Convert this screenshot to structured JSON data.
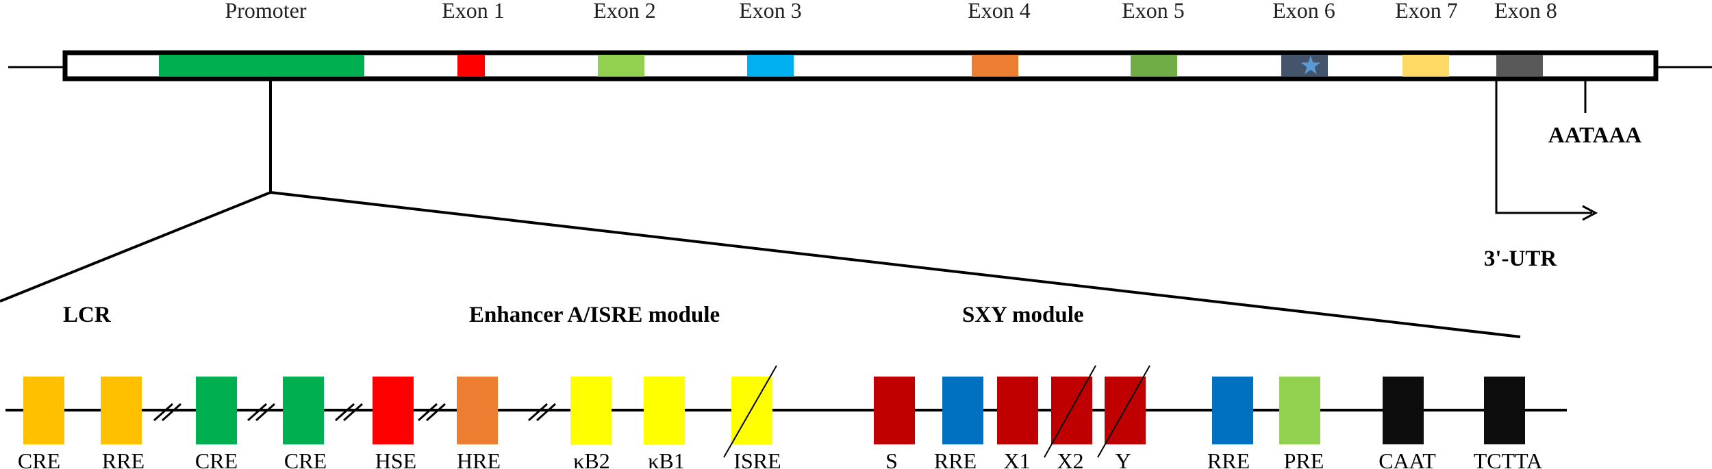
{
  "gene": {
    "promoter": {
      "label": "Promoter",
      "color": "#00b050"
    },
    "exons": [
      {
        "label": "Exon 1",
        "color": "#ff0000"
      },
      {
        "label": "Exon 2",
        "color": "#92d050"
      },
      {
        "label": "Exon 3",
        "color": "#00b0f0"
      },
      {
        "label": "Exon 4",
        "color": "#ed7d31"
      },
      {
        "label": "Exon 5",
        "color": "#70ad47"
      },
      {
        "label": "Exon 6",
        "color": "#44546a",
        "marker": "star-icon",
        "marker_color": "#5b9bd5"
      },
      {
        "label": "Exon 7",
        "color": "#ffd966"
      },
      {
        "label": "Exon 8",
        "color": "#595959"
      }
    ],
    "polyA_signal": "AATAAA",
    "utr_label": "3'-UTR"
  },
  "modules": {
    "lcr": "LCR",
    "enhancer": "Enhancer A/ISRE module",
    "sxy": "SXY module"
  },
  "elements": [
    {
      "label": "CRE",
      "color": "#ffc000"
    },
    {
      "label": "RRE",
      "color": "#ffc000"
    },
    {
      "label": "CRE",
      "color": "#00b050"
    },
    {
      "label": "CRE",
      "color": "#00b050"
    },
    {
      "label": "HSE",
      "color": "#ff0000"
    },
    {
      "label": "HRE",
      "color": "#ed7d31"
    },
    {
      "label": "κB2",
      "color": "#ffff00"
    },
    {
      "label": "κB1",
      "color": "#ffff00"
    },
    {
      "label": "ISRE",
      "color": "#ffff00",
      "crossed": true
    },
    {
      "label": "S",
      "color": "#c00000"
    },
    {
      "label": "RRE",
      "color": "#0070c0"
    },
    {
      "label": "X1",
      "color": "#c00000"
    },
    {
      "label": "X2",
      "color": "#c00000",
      "crossed": true
    },
    {
      "label": "Y",
      "color": "#c00000",
      "crossed": true
    },
    {
      "label": "RRE",
      "color": "#0070c0"
    },
    {
      "label": "PRE",
      "color": "#92d050"
    },
    {
      "label": "CAAT",
      "color": "#0d0d0d"
    },
    {
      "label": "TCTTA",
      "color": "#0d0d0d"
    }
  ]
}
